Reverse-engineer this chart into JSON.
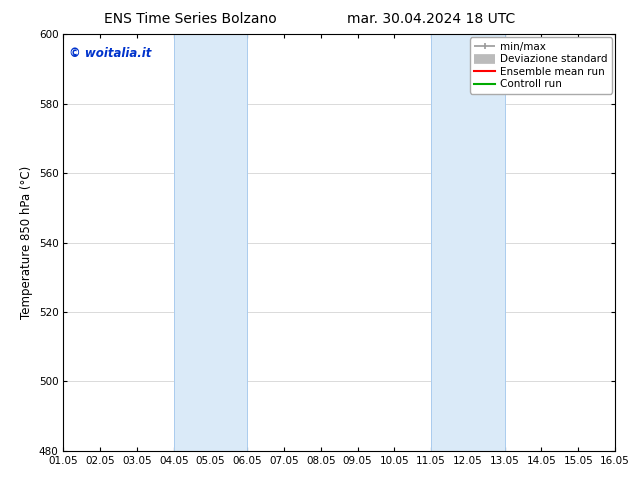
{
  "title_left": "ENS Time Series Bolzano",
  "title_right": "mar. 30.04.2024 18 UTC",
  "ylabel": "Temperature 850 hPa (°C)",
  "ylim": [
    480,
    600
  ],
  "yticks": [
    480,
    500,
    520,
    540,
    560,
    580,
    600
  ],
  "xtick_labels": [
    "01.05",
    "02.05",
    "03.05",
    "04.05",
    "05.05",
    "06.05",
    "07.05",
    "08.05",
    "09.05",
    "10.05",
    "11.05",
    "12.05",
    "13.05",
    "14.05",
    "15.05",
    "16.05"
  ],
  "shaded_regions": [
    {
      "xmin": 3,
      "xmax": 5,
      "color": "#daeaf8"
    },
    {
      "xmin": 10,
      "xmax": 12,
      "color": "#daeaf8"
    }
  ],
  "shaded_borders": [
    3,
    5,
    10,
    12
  ],
  "watermark_text": "© woitalia.it",
  "watermark_color": "#0033cc",
  "legend_items": [
    {
      "label": "min/max",
      "color": "#999999",
      "lw": 1.2
    },
    {
      "label": "Deviazione standard",
      "color": "#bbbbbb",
      "lw": 7
    },
    {
      "label": "Ensemble mean run",
      "color": "#ff0000",
      "lw": 1.5
    },
    {
      "label": "Controll run",
      "color": "#00aa00",
      "lw": 1.5
    }
  ],
  "bg_color": "#ffffff",
  "plot_bg_color": "#ffffff",
  "spine_color": "#000000",
  "tick_color": "#000000",
  "font_size_title": 10,
  "font_size_axis_label": 8.5,
  "font_size_tick": 7.5,
  "font_size_legend": 7.5,
  "font_size_watermark": 8.5
}
